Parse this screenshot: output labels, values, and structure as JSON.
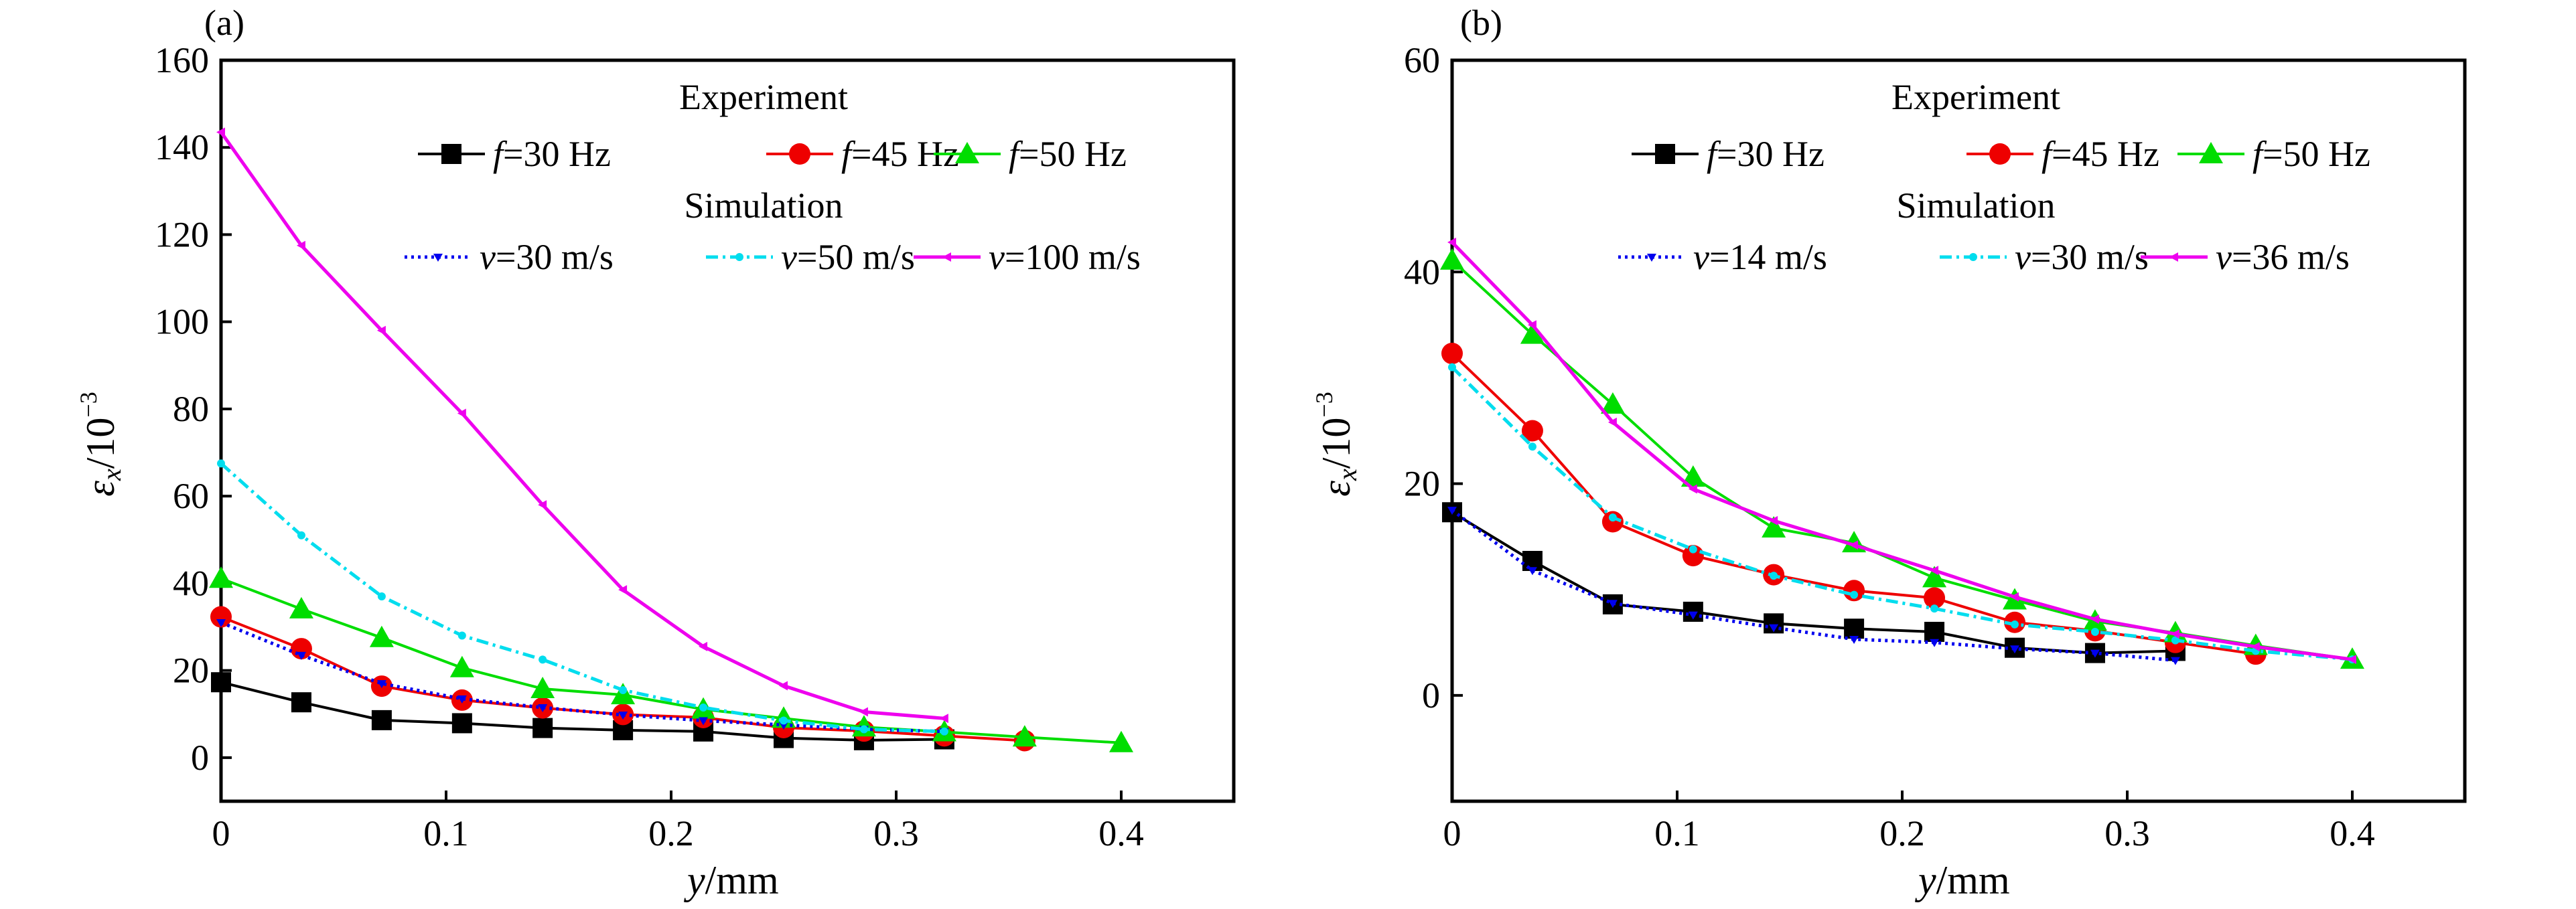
{
  "chart_data": [
    {
      "type": "line",
      "panel_label": "(a)",
      "xlabel": {
        "var": "y",
        "unit": "/mm"
      },
      "ylabel": {
        "var": "ε",
        "sub": "x",
        "unit": "/10",
        "exp": "−3"
      },
      "xlim": [
        0,
        0.45
      ],
      "ylim": [
        -10,
        160
      ],
      "xticks": [
        0,
        0.1,
        0.2,
        0.3,
        0.4
      ],
      "xtick_labels": [
        "0",
        "0.1",
        "0.2",
        "0.3",
        "0.4"
      ],
      "yticks": [
        0,
        20,
        40,
        60,
        80,
        100,
        120,
        140,
        160
      ],
      "ytick_labels": [
        "0",
        "20",
        "40",
        "60",
        "80",
        "100",
        "120",
        "140",
        "160"
      ],
      "grid": false,
      "legend": {
        "experiment_title": "Experiment",
        "simulation_title": "Simulation",
        "experiment_labels": [
          {
            "var": "f",
            "text": "=30 Hz"
          },
          {
            "var": "f",
            "text": "=45 Hz"
          },
          {
            "var": "f",
            "text": "=50 Hz"
          }
        ],
        "simulation_labels": [
          {
            "var": "v",
            "text": "=30 m/s"
          },
          {
            "var": "v",
            "text": "=50 m/s"
          },
          {
            "var": "v",
            "text": "=100 m/s"
          }
        ]
      },
      "series": [
        {
          "name": "f=30 Hz",
          "group": "experiment",
          "color": "#000000",
          "marker": "square",
          "x": [
            0,
            0.0357,
            0.0714,
            0.1071,
            0.1429,
            0.1786,
            0.2143,
            0.25,
            0.2857,
            0.3214
          ],
          "y": [
            17.3,
            12.7,
            8.6,
            7.9,
            6.8,
            6.3,
            6.0,
            4.5,
            4.0,
            4.2
          ]
        },
        {
          "name": "f=45 Hz",
          "group": "experiment",
          "color": "#ee0000",
          "marker": "circle",
          "x": [
            0,
            0.0357,
            0.0714,
            0.1071,
            0.1429,
            0.1786,
            0.2143,
            0.25,
            0.2857,
            0.3214,
            0.3571
          ],
          "y": [
            32.3,
            25.0,
            16.4,
            13.2,
            11.4,
            9.9,
            9.2,
            6.9,
            6.1,
            5.0,
            3.9
          ]
        },
        {
          "name": "f=50 Hz",
          "group": "experiment",
          "color": "#00dd00",
          "marker": "triangle",
          "x": [
            0,
            0.0357,
            0.0714,
            0.1071,
            0.1429,
            0.1786,
            0.2143,
            0.25,
            0.2857,
            0.3214,
            0.3571,
            0.4
          ],
          "y": [
            41.1,
            34.1,
            27.5,
            20.6,
            15.8,
            14.4,
            11.1,
            9.0,
            7.0,
            5.9,
            4.7,
            3.4
          ]
        },
        {
          "name": "v=30 m/s",
          "group": "simulation",
          "color": "#0000ee",
          "marker": "tri-down-small",
          "dash": "dotted",
          "x": [
            0,
            0.0357,
            0.0714,
            0.1071,
            0.1429,
            0.1786,
            0.2143,
            0.25,
            0.2857,
            0.3214
          ],
          "y": [
            31.0,
            23.5,
            17.0,
            13.5,
            11.5,
            9.8,
            8.5,
            7.5,
            6.5,
            6.0
          ]
        },
        {
          "name": "v=50 m/s",
          "group": "simulation",
          "color": "#00ddee",
          "marker": "dot-small",
          "dash": "dashdot",
          "x": [
            0,
            0.0357,
            0.0714,
            0.1071,
            0.1429,
            0.1786,
            0.2143,
            0.25,
            0.2857,
            0.3214
          ],
          "y": [
            67.5,
            51.0,
            37.0,
            28.0,
            22.5,
            15.5,
            11.5,
            8.5,
            6.5,
            6.0
          ]
        },
        {
          "name": "v=100 m/s",
          "group": "simulation",
          "color": "#ee00ee",
          "marker": "tri-left-small",
          "dash": "solid",
          "x": [
            0,
            0.0357,
            0.0714,
            0.1071,
            0.1429,
            0.1786,
            0.2143,
            0.25,
            0.2857,
            0.3214
          ],
          "y": [
            143.5,
            117.5,
            98.0,
            79.0,
            58.0,
            38.5,
            25.5,
            16.5,
            10.5,
            9.0
          ]
        }
      ]
    },
    {
      "type": "line",
      "panel_label": "(b)",
      "xlabel": {
        "var": "y",
        "unit": "/mm"
      },
      "ylabel": {
        "var": "ε",
        "sub": "x",
        "unit": "/10",
        "exp": "−3"
      },
      "xlim": [
        0,
        0.45
      ],
      "ylim": [
        -10,
        60
      ],
      "xticks": [
        0,
        0.1,
        0.2,
        0.3,
        0.4
      ],
      "xtick_labels": [
        "0",
        "0.1",
        "0.2",
        "0.3",
        "0.4"
      ],
      "yticks": [
        0,
        20,
        40,
        60
      ],
      "ytick_labels": [
        "0",
        "20",
        "40",
        "60"
      ],
      "grid": false,
      "legend": {
        "experiment_title": "Experiment",
        "simulation_title": "Simulation",
        "experiment_labels": [
          {
            "var": "f",
            "text": "=30 Hz"
          },
          {
            "var": "f",
            "text": "=45 Hz"
          },
          {
            "var": "f",
            "text": "=50 Hz"
          }
        ],
        "simulation_labels": [
          {
            "var": "v",
            "text": "=14 m/s"
          },
          {
            "var": "v",
            "text": "=30 m/s"
          },
          {
            "var": "v",
            "text": "=36 m/s"
          }
        ]
      },
      "series": [
        {
          "name": "f=30 Hz",
          "group": "experiment",
          "color": "#000000",
          "marker": "square",
          "x": [
            0,
            0.0357,
            0.0714,
            0.1071,
            0.1429,
            0.1786,
            0.2143,
            0.25,
            0.2857,
            0.3214
          ],
          "y": [
            17.3,
            12.7,
            8.6,
            7.9,
            6.8,
            6.3,
            6.0,
            4.5,
            4.0,
            4.2
          ]
        },
        {
          "name": "f=45 Hz",
          "group": "experiment",
          "color": "#ee0000",
          "marker": "circle",
          "x": [
            0,
            0.0357,
            0.0714,
            0.1071,
            0.1429,
            0.1786,
            0.2143,
            0.25,
            0.2857,
            0.3214,
            0.3571
          ],
          "y": [
            32.3,
            25.0,
            16.4,
            13.2,
            11.4,
            9.9,
            9.2,
            6.9,
            6.1,
            5.0,
            3.9
          ]
        },
        {
          "name": "f=50 Hz",
          "group": "experiment",
          "color": "#00dd00",
          "marker": "triangle",
          "x": [
            0,
            0.0357,
            0.0714,
            0.1071,
            0.1429,
            0.1786,
            0.2143,
            0.25,
            0.2857,
            0.3214,
            0.3571,
            0.4
          ],
          "y": [
            41.1,
            34.1,
            27.5,
            20.6,
            15.8,
            14.4,
            11.1,
            9.0,
            7.0,
            5.9,
            4.7,
            3.4
          ]
        },
        {
          "name": "v=14 m/s",
          "group": "simulation",
          "color": "#0000ee",
          "marker": "tri-down-small",
          "dash": "dotted",
          "x": [
            0,
            0.0357,
            0.0714,
            0.1071,
            0.1429,
            0.1786,
            0.2143,
            0.25,
            0.2857,
            0.3214
          ],
          "y": [
            17.5,
            11.8,
            8.7,
            7.6,
            6.4,
            5.3,
            5.0,
            4.4,
            4.0,
            3.3
          ]
        },
        {
          "name": "v=30 m/s",
          "group": "simulation",
          "color": "#00ddee",
          "marker": "dot-small",
          "dash": "dashdot",
          "x": [
            0,
            0.0357,
            0.0714,
            0.1071,
            0.1429,
            0.1786,
            0.2143,
            0.25,
            0.2857,
            0.3214,
            0.3571,
            0.4
          ],
          "y": [
            31.0,
            23.5,
            16.8,
            13.8,
            11.3,
            9.5,
            8.2,
            6.7,
            6.0,
            5.2,
            4.2,
            3.4
          ]
        },
        {
          "name": "v=36 m/s",
          "group": "simulation",
          "color": "#ee00ee",
          "marker": "tri-left-small",
          "dash": "solid",
          "x": [
            0,
            0.0357,
            0.0714,
            0.1071,
            0.1429,
            0.1786,
            0.2143,
            0.25,
            0.2857,
            0.3214,
            0.3571,
            0.4
          ],
          "y": [
            42.8,
            35.0,
            25.8,
            19.5,
            16.5,
            14.2,
            11.8,
            9.3,
            7.2,
            5.8,
            4.6,
            3.4
          ]
        }
      ]
    }
  ]
}
